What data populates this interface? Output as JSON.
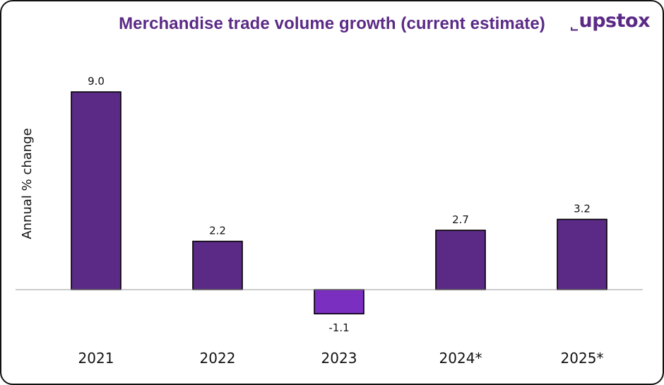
{
  "brand": {
    "logo_text": "upstox",
    "logo_color": "#5b2a86"
  },
  "chart_data": {
    "type": "bar",
    "title": "Merchandise trade volume growth (current estimate)",
    "xlabel": "",
    "ylabel": "Annual % change",
    "categories": [
      "2021",
      "2022",
      "2023",
      "2024*",
      "2025*"
    ],
    "values": [
      9.0,
      2.2,
      -1.1,
      2.7,
      3.2
    ],
    "value_labels": [
      "9.0",
      "2.2",
      "-1.1",
      "2.7",
      "3.2"
    ],
    "ylim": [
      -1.1,
      9.0
    ],
    "grid": false,
    "legend": "none",
    "colors": {
      "positive_bar": "#5b2a86",
      "negative_bar": "#7b2fc0",
      "bar_outline": "#000000",
      "baseline": "#999999"
    }
  }
}
